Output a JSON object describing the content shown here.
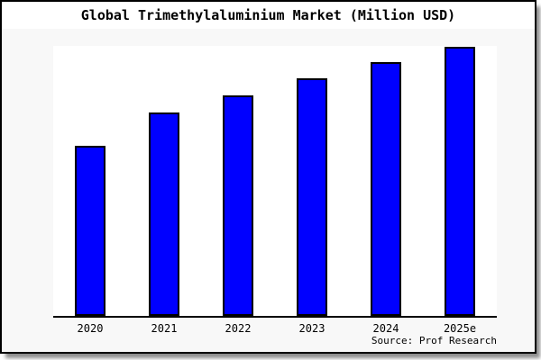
{
  "chart_data": {
    "type": "bar",
    "title": "Global Trimethylaluminium Market (Million USD)",
    "categories": [
      "2020",
      "2021",
      "2022",
      "2023",
      "2024",
      "2025e"
    ],
    "values": [
      189,
      226,
      245,
      264,
      282,
      299
    ],
    "ylim": [
      0,
      300
    ],
    "xlabel": "",
    "ylabel": "",
    "y_axis_labels_visible": false,
    "grid": false,
    "legend": false,
    "bar_color": "#0000ff",
    "bar_border_color": "#000000",
    "axis_color": "#000000",
    "background_color": "#f8f8f8",
    "plot_background_color": "#ffffff",
    "source": "Source: Prof Research"
  }
}
